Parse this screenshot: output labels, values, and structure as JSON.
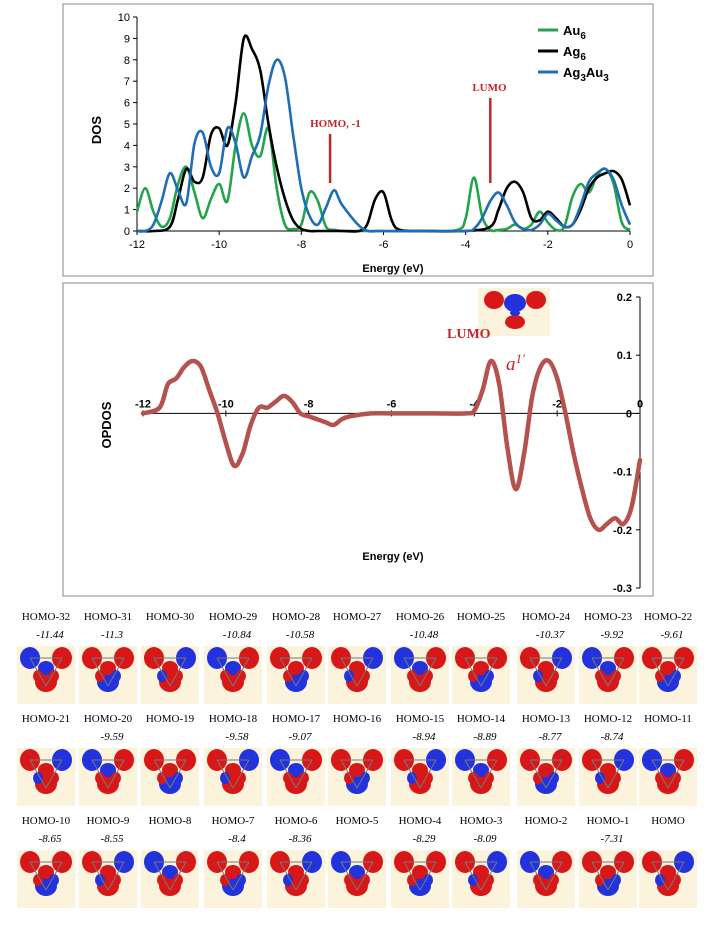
{
  "chart_data": [
    {
      "type": "line",
      "xlabel": "Energy (eV)",
      "ylabel": "DOS",
      "xlim": [
        -12,
        0
      ],
      "ylim": [
        0,
        10
      ],
      "xticks": [
        "-12",
        "-10",
        "-8",
        "-6",
        "-4",
        "-2",
        "0"
      ],
      "yticks": [
        "0",
        "1",
        "2",
        "3",
        "4",
        "5",
        "6",
        "7",
        "8",
        "9",
        "10"
      ],
      "grid": false,
      "legend_position": "top-right",
      "legend": [
        {
          "base": "Au",
          "sub": "6",
          "color": "#22a44a"
        },
        {
          "base": "Ag",
          "sub": "6",
          "color": "#000000"
        },
        {
          "base": "Ag",
          "sub": "3",
          "base2": "Au",
          "sub2": "3",
          "color": "#1f6db5"
        }
      ],
      "annotations": [
        {
          "text": "HOMO, -1",
          "x": -7.3,
          "color": "#c0272d"
        },
        {
          "text": "LUMO",
          "x": -3.4,
          "color": "#c0272d"
        }
      ],
      "series": [
        {
          "color": "#22a44a",
          "x": [
            -12,
            -11.8,
            -11.6,
            -11.4,
            -11.2,
            -11.0,
            -10.8,
            -10.6,
            -10.4,
            -10.2,
            -10.0,
            -9.8,
            -9.6,
            -9.4,
            -9.2,
            -9.0,
            -8.8,
            -8.6,
            -8.4,
            -8.2,
            -8.0,
            -7.8,
            -7.6,
            -7.4,
            -7.2,
            -7.0,
            -6.5,
            -6.0,
            -5.0,
            -4.2,
            -4.0,
            -3.8,
            -3.6,
            -3.4,
            -3.2,
            -3.0,
            -2.8,
            -2.6,
            -2.4,
            -2.2,
            -2.0,
            -1.8,
            -1.6,
            -1.4,
            -1.2,
            -1.0,
            -0.8,
            -0.6,
            -0.4,
            -0.2,
            0
          ],
          "y": [
            0.9,
            2.0,
            0.9,
            0.2,
            0.6,
            2.2,
            3.0,
            1.8,
            0.6,
            1.5,
            2.2,
            1.4,
            4.0,
            5.5,
            4.0,
            3.5,
            4.8,
            2.0,
            0.3,
            0.1,
            0.3,
            1.8,
            1.4,
            0.2,
            0.05,
            0,
            0,
            0,
            0,
            0.05,
            0.6,
            2.5,
            0.7,
            0.05,
            0.05,
            0.1,
            0.3,
            0.1,
            0.3,
            0.9,
            0.4,
            0.05,
            0.2,
            1.6,
            2.2,
            1.8,
            2.6,
            2.9,
            2.2,
            0.4,
            0.05
          ]
        },
        {
          "color": "#000000",
          "x": [
            -12,
            -11.6,
            -11.2,
            -11.0,
            -10.8,
            -10.6,
            -10.4,
            -10.2,
            -10.0,
            -9.8,
            -9.6,
            -9.4,
            -9.2,
            -9.0,
            -8.8,
            -8.6,
            -8.4,
            -8.2,
            -8.0,
            -7.8,
            -7.6,
            -7.4,
            -7.2,
            -7.0,
            -6.6,
            -6.4,
            -6.2,
            -6.0,
            -5.8,
            -5.6,
            -5.0,
            -4.0,
            -3.4,
            -3.2,
            -3.0,
            -2.8,
            -2.6,
            -2.4,
            -2.2,
            -2.0,
            -1.8,
            -1.6,
            -1.4,
            -1.2,
            -1.0,
            -0.8,
            -0.6,
            -0.4,
            -0.2,
            0
          ],
          "y": [
            0,
            0,
            0.2,
            1.5,
            2.9,
            2.3,
            2.5,
            4.5,
            4.8,
            4.0,
            6.0,
            9.0,
            8.5,
            7.5,
            5.0,
            3.0,
            1.5,
            0.5,
            0.1,
            0,
            0,
            0,
            0,
            0,
            0,
            0.3,
            1.5,
            1.8,
            0.5,
            0.05,
            0,
            0,
            0.2,
            1.0,
            2.0,
            2.3,
            1.8,
            0.6,
            0.5,
            0.9,
            0.6,
            0.2,
            0.3,
            1.0,
            2.0,
            2.5,
            2.7,
            2.8,
            2.4,
            1.2
          ]
        },
        {
          "color": "#1f6db5",
          "x": [
            -12,
            -11.8,
            -11.6,
            -11.4,
            -11.2,
            -11.0,
            -10.8,
            -10.6,
            -10.4,
            -10.2,
            -10.0,
            -9.8,
            -9.6,
            -9.4,
            -9.2,
            -9.0,
            -8.8,
            -8.6,
            -8.4,
            -8.2,
            -8.0,
            -7.8,
            -7.6,
            -7.4,
            -7.2,
            -7.0,
            -6.5,
            -6.0,
            -5.0,
            -4.0,
            -3.8,
            -3.6,
            -3.4,
            -3.2,
            -3.0,
            -2.8,
            -2.6,
            -2.4,
            -2.2,
            -2.0,
            -1.8,
            -1.6,
            -1.4,
            -1.2,
            -1.0,
            -0.8,
            -0.6,
            -0.4,
            -0.2,
            0
          ],
          "y": [
            0,
            0,
            0.3,
            1.4,
            2.7,
            1.9,
            1.3,
            4.1,
            4.6,
            3.0,
            2.7,
            4.8,
            4.1,
            2.5,
            3.5,
            4.5,
            6.8,
            8.0,
            7.2,
            4.5,
            2.0,
            0.7,
            0.3,
            1.1,
            1.9,
            1.2,
            0.1,
            0,
            0,
            0,
            0.1,
            0.6,
            1.4,
            1.8,
            1.2,
            0.4,
            0.1,
            0.05,
            0.3,
            0.8,
            0.5,
            0.2,
            0.3,
            1.2,
            2.3,
            2.7,
            2.9,
            2.4,
            1.2,
            0.3
          ]
        }
      ]
    },
    {
      "type": "line",
      "xlabel": "Energy (eV)",
      "ylabel": "OPDOS",
      "xlim": [
        -12,
        0
      ],
      "ylim": [
        -0.3,
        0.2
      ],
      "xticks": [
        "-12",
        "-10",
        "-8",
        "-6",
        "-4",
        "-2",
        "0"
      ],
      "yticks": [
        "0.2",
        "0.1",
        "0",
        "-0.1",
        "-0.2",
        "-0.3"
      ],
      "grid": false,
      "annotations": [
        {
          "text": "LUMO",
          "color": "#c0272d"
        },
        {
          "text": "a",
          "prime": "1'",
          "color": "#c0272d"
        }
      ],
      "series": [
        {
          "color": "#b5524d",
          "x": [
            -12,
            -11.6,
            -11.4,
            -11.2,
            -11.0,
            -10.8,
            -10.6,
            -10.4,
            -10.2,
            -10.0,
            -9.8,
            -9.6,
            -9.4,
            -9.2,
            -9.0,
            -8.8,
            -8.6,
            -8.4,
            -8.2,
            -8.0,
            -7.8,
            -7.6,
            -7.4,
            -7.2,
            -7.0,
            -6.5,
            -6.0,
            -5.0,
            -4.2,
            -4.0,
            -3.8,
            -3.6,
            -3.4,
            -3.2,
            -3.0,
            -2.8,
            -2.6,
            -2.4,
            -2.2,
            -2.0,
            -1.8,
            -1.6,
            -1.4,
            -1.2,
            -1.0,
            -0.8,
            -0.6,
            -0.4,
            -0.2,
            0
          ],
          "y": [
            0,
            0.01,
            0.05,
            0.06,
            0.08,
            0.09,
            0.08,
            0.04,
            0.0,
            -0.05,
            -0.09,
            -0.07,
            -0.02,
            0.01,
            0.01,
            0.02,
            0.03,
            0.02,
            0.0,
            -0.005,
            -0.01,
            -0.015,
            -0.02,
            -0.01,
            -0.005,
            0,
            0,
            0,
            0,
            0.005,
            0.04,
            0.09,
            0.05,
            -0.06,
            -0.13,
            -0.07,
            0.03,
            0.08,
            0.09,
            0.06,
            0.0,
            -0.07,
            -0.13,
            -0.18,
            -0.2,
            -0.19,
            -0.18,
            -0.19,
            -0.16,
            -0.08
          ]
        }
      ]
    }
  ],
  "orbitals": {
    "rows": [
      {
        "labels": [
          "HOMO-32",
          "HOMO-31",
          "HOMO-30",
          "HOMO-29",
          "HOMO-28",
          "HOMO-27",
          "HOMO-26",
          "HOMO-25",
          "HOMO-24",
          "HOMO-23",
          "HOMO-22"
        ],
        "energies": [
          {
            "text": "-11.44",
            "col": 0
          },
          {
            "text": "-11.3",
            "col": 1
          },
          {
            "text": "-10.84",
            "col": 3
          },
          {
            "text": "-10.58",
            "col": 4
          },
          {
            "text": "-10.48",
            "col": 6
          },
          {
            "text": "-10.37",
            "col": 8
          },
          {
            "text": "-9.92",
            "col": 9
          },
          {
            "text": "-9.61",
            "col": 10
          }
        ]
      },
      {
        "labels": [
          "HOMO-21",
          "HOMO-20",
          "HOMO-19",
          "HOMO-18",
          "HOMO-17",
          "HOMO-16",
          "HOMO-15",
          "HOMO-14",
          "HOMO-13",
          "HOMO-12",
          "HOMO-11"
        ],
        "energies": [
          {
            "text": "-9.59",
            "col": 1
          },
          {
            "text": "-9.58",
            "col": 3
          },
          {
            "text": "-9.07",
            "col": 4
          },
          {
            "text": "-8.94",
            "col": 6
          },
          {
            "text": "-8.89",
            "col": 7
          },
          {
            "text": "-8.77",
            "col": 8
          },
          {
            "text": "-8.74",
            "col": 9
          }
        ]
      },
      {
        "labels": [
          "HOMO-10",
          "HOMO-9",
          "HOMO-8",
          "HOMO-7",
          "HOMO-6",
          "HOMO-5",
          "HOMO-4",
          "HOMO-3",
          "HOMO-2",
          "HOMO-1",
          "HOMO"
        ],
        "energies": [
          {
            "text": "-8.65",
            "col": 0
          },
          {
            "text": "-8.55",
            "col": 1
          },
          {
            "text": "-8.4",
            "col": 3
          },
          {
            "text": "-8.36",
            "col": 4
          },
          {
            "text": "-8.29",
            "col": 6
          },
          {
            "text": "-8.09",
            "col": 7
          },
          {
            "text": "-7.31",
            "col": 9
          }
        ]
      }
    ]
  }
}
